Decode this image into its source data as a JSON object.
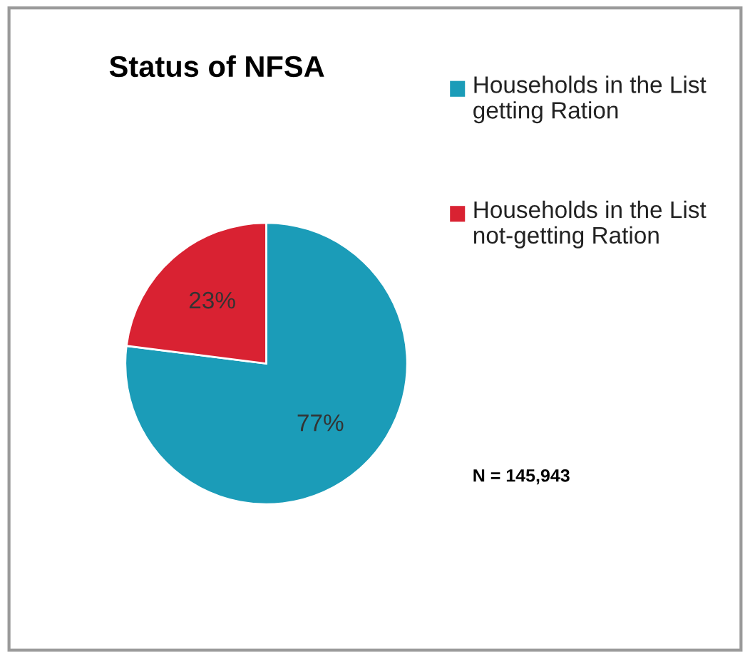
{
  "chart_data": {
    "type": "pie",
    "title": "Status of NFSA",
    "categories": [
      "Households in the List getting Ration",
      "Households in the List not-getting Ration"
    ],
    "values": [
      77,
      23
    ],
    "colors": [
      "#1b9cb8",
      "#d92232"
    ],
    "value_labels": [
      "77%",
      "23%"
    ],
    "legend": "right",
    "annotations": [
      "N = 145,943"
    ]
  }
}
